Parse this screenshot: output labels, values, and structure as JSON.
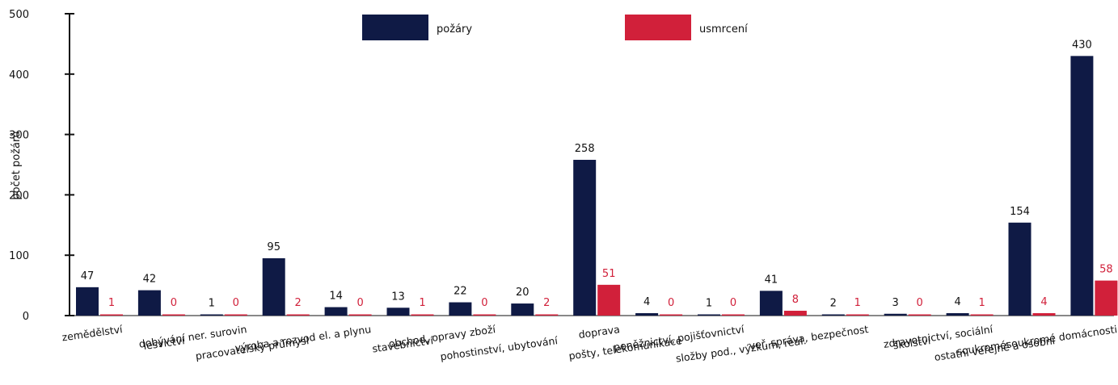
{
  "chart_data": {
    "type": "bar",
    "title": "",
    "ylabel": "počet požárů",
    "ylim": [
      0,
      500
    ],
    "yticks": [
      0,
      100,
      200,
      300,
      400,
      500
    ],
    "legend_position": "top-center",
    "categories": [
      "zemědělství",
      "lesvictví",
      "dobývání ner. surovin",
      "pracovatelský průmysl",
      "výroba a rozvod el. a plynu",
      "stavebnictví",
      "obchod, opravy zboží",
      "pohostinství, ubytování",
      "doprava",
      "pošty, telekomunikace",
      "peněžnictví, pojišťovnictví",
      "složby pod., výzkum, real.",
      "veř. správa, bezpečnost",
      "školství",
      "zdravotnictví, sociální",
      "ostatní veřejné a osobní",
      "soukromésoukromé domácnosti"
    ],
    "series": [
      {
        "name": "požáry",
        "color": "#0f1a45",
        "values": [
          47,
          42,
          1,
          95,
          14,
          13,
          22,
          20,
          258,
          4,
          1,
          41,
          2,
          3,
          4,
          154,
          430
        ]
      },
      {
        "name": "usmrcení",
        "color": "#d1203a",
        "values": [
          1,
          0,
          0,
          2,
          0,
          1,
          0,
          2,
          51,
          0,
          0,
          8,
          1,
          0,
          1,
          4,
          58
        ]
      }
    ]
  }
}
